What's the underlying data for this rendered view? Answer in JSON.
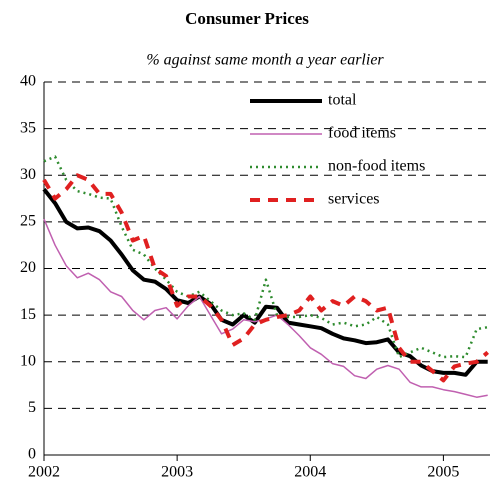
{
  "chart_data": {
    "type": "line",
    "title": "Consumer Prices",
    "subtitle": "% against same month a year earlier",
    "x": [
      2002,
      2002.083,
      2002.167,
      2002.25,
      2002.333,
      2002.417,
      2002.5,
      2002.583,
      2002.667,
      2002.75,
      2002.833,
      2002.917,
      2003,
      2003.083,
      2003.167,
      2003.25,
      2003.333,
      2003.417,
      2003.5,
      2003.583,
      2003.667,
      2003.75,
      2003.833,
      2003.917,
      2004,
      2004.083,
      2004.167,
      2004.25,
      2004.333,
      2004.417,
      2004.5,
      2004.583,
      2004.667,
      2004.75,
      2004.833,
      2004.917,
      2005,
      2005.083,
      2005.167,
      2005.25,
      2005.333
    ],
    "series": [
      {
        "name": "total",
        "color": "#000000",
        "style": "solid",
        "linewidth": 4,
        "values": [
          28.5,
          27,
          25,
          24.3,
          24.4,
          24,
          23,
          21.5,
          19.8,
          18.8,
          18.6,
          17.8,
          16.6,
          16.3,
          17,
          16.2,
          14.5,
          14,
          15,
          14.2,
          15.9,
          15.8,
          14.2,
          14,
          13.8,
          13.6,
          13,
          12.5,
          12.3,
          12,
          12.1,
          12.4,
          11,
          10.6,
          9.6,
          9,
          8.8,
          8.8,
          8.6,
          10,
          10
        ]
      },
      {
        "name": "food items",
        "color": "#c060b0",
        "style": "solid",
        "linewidth": 1.5,
        "values": [
          25.3,
          22.5,
          20.3,
          19,
          19.5,
          18.8,
          17.5,
          17,
          15.5,
          14.5,
          15.5,
          15.8,
          14.6,
          16,
          17,
          15,
          13,
          13.5,
          14.5,
          14.3,
          14.6,
          15,
          14,
          12.8,
          11.5,
          10.8,
          9.8,
          9.5,
          8.5,
          8.2,
          9.2,
          9.6,
          9.2,
          7.8,
          7.3,
          7.3,
          7,
          6.8,
          6.5,
          6.2,
          6.4
        ]
      },
      {
        "name": "non-food items",
        "color": "#2e8b2e",
        "style": "dotted",
        "linewidth": 2.5,
        "values": [
          31.5,
          32,
          29.5,
          28.3,
          28,
          27.6,
          27.5,
          24.5,
          22,
          21.5,
          20,
          18.8,
          17.5,
          17,
          17.5,
          16.5,
          15.5,
          15,
          15.2,
          14.5,
          18.8,
          15,
          14.8,
          14.8,
          15,
          14.7,
          14,
          14.2,
          13.8,
          14,
          14.8,
          14,
          10.5,
          11,
          11.5,
          11,
          10.5,
          10.6,
          10.5,
          13.5,
          13.7
        ]
      },
      {
        "name": "services",
        "color": "#e02020",
        "style": "dashed",
        "linewidth": 4,
        "values": [
          29.5,
          27.5,
          28.5,
          30,
          29.5,
          28,
          28,
          26,
          23,
          23.5,
          20,
          19.2,
          16,
          17,
          17,
          16,
          14.5,
          11.8,
          12.5,
          14,
          14.5,
          14.8,
          15,
          15.5,
          17,
          15.5,
          16.5,
          16,
          17,
          16.5,
          15.5,
          15.8,
          11.5,
          10,
          10,
          9,
          8,
          9.5,
          9.8,
          10,
          11
        ]
      }
    ],
    "xlim": [
      2002,
      2005.35
    ],
    "xticks": [
      2002,
      2003,
      2004,
      2005
    ],
    "ylim": [
      0,
      40
    ],
    "yticks": [
      0,
      5,
      10,
      15,
      20,
      25,
      30,
      35,
      40
    ],
    "grid": true,
    "legend": "upper right"
  }
}
